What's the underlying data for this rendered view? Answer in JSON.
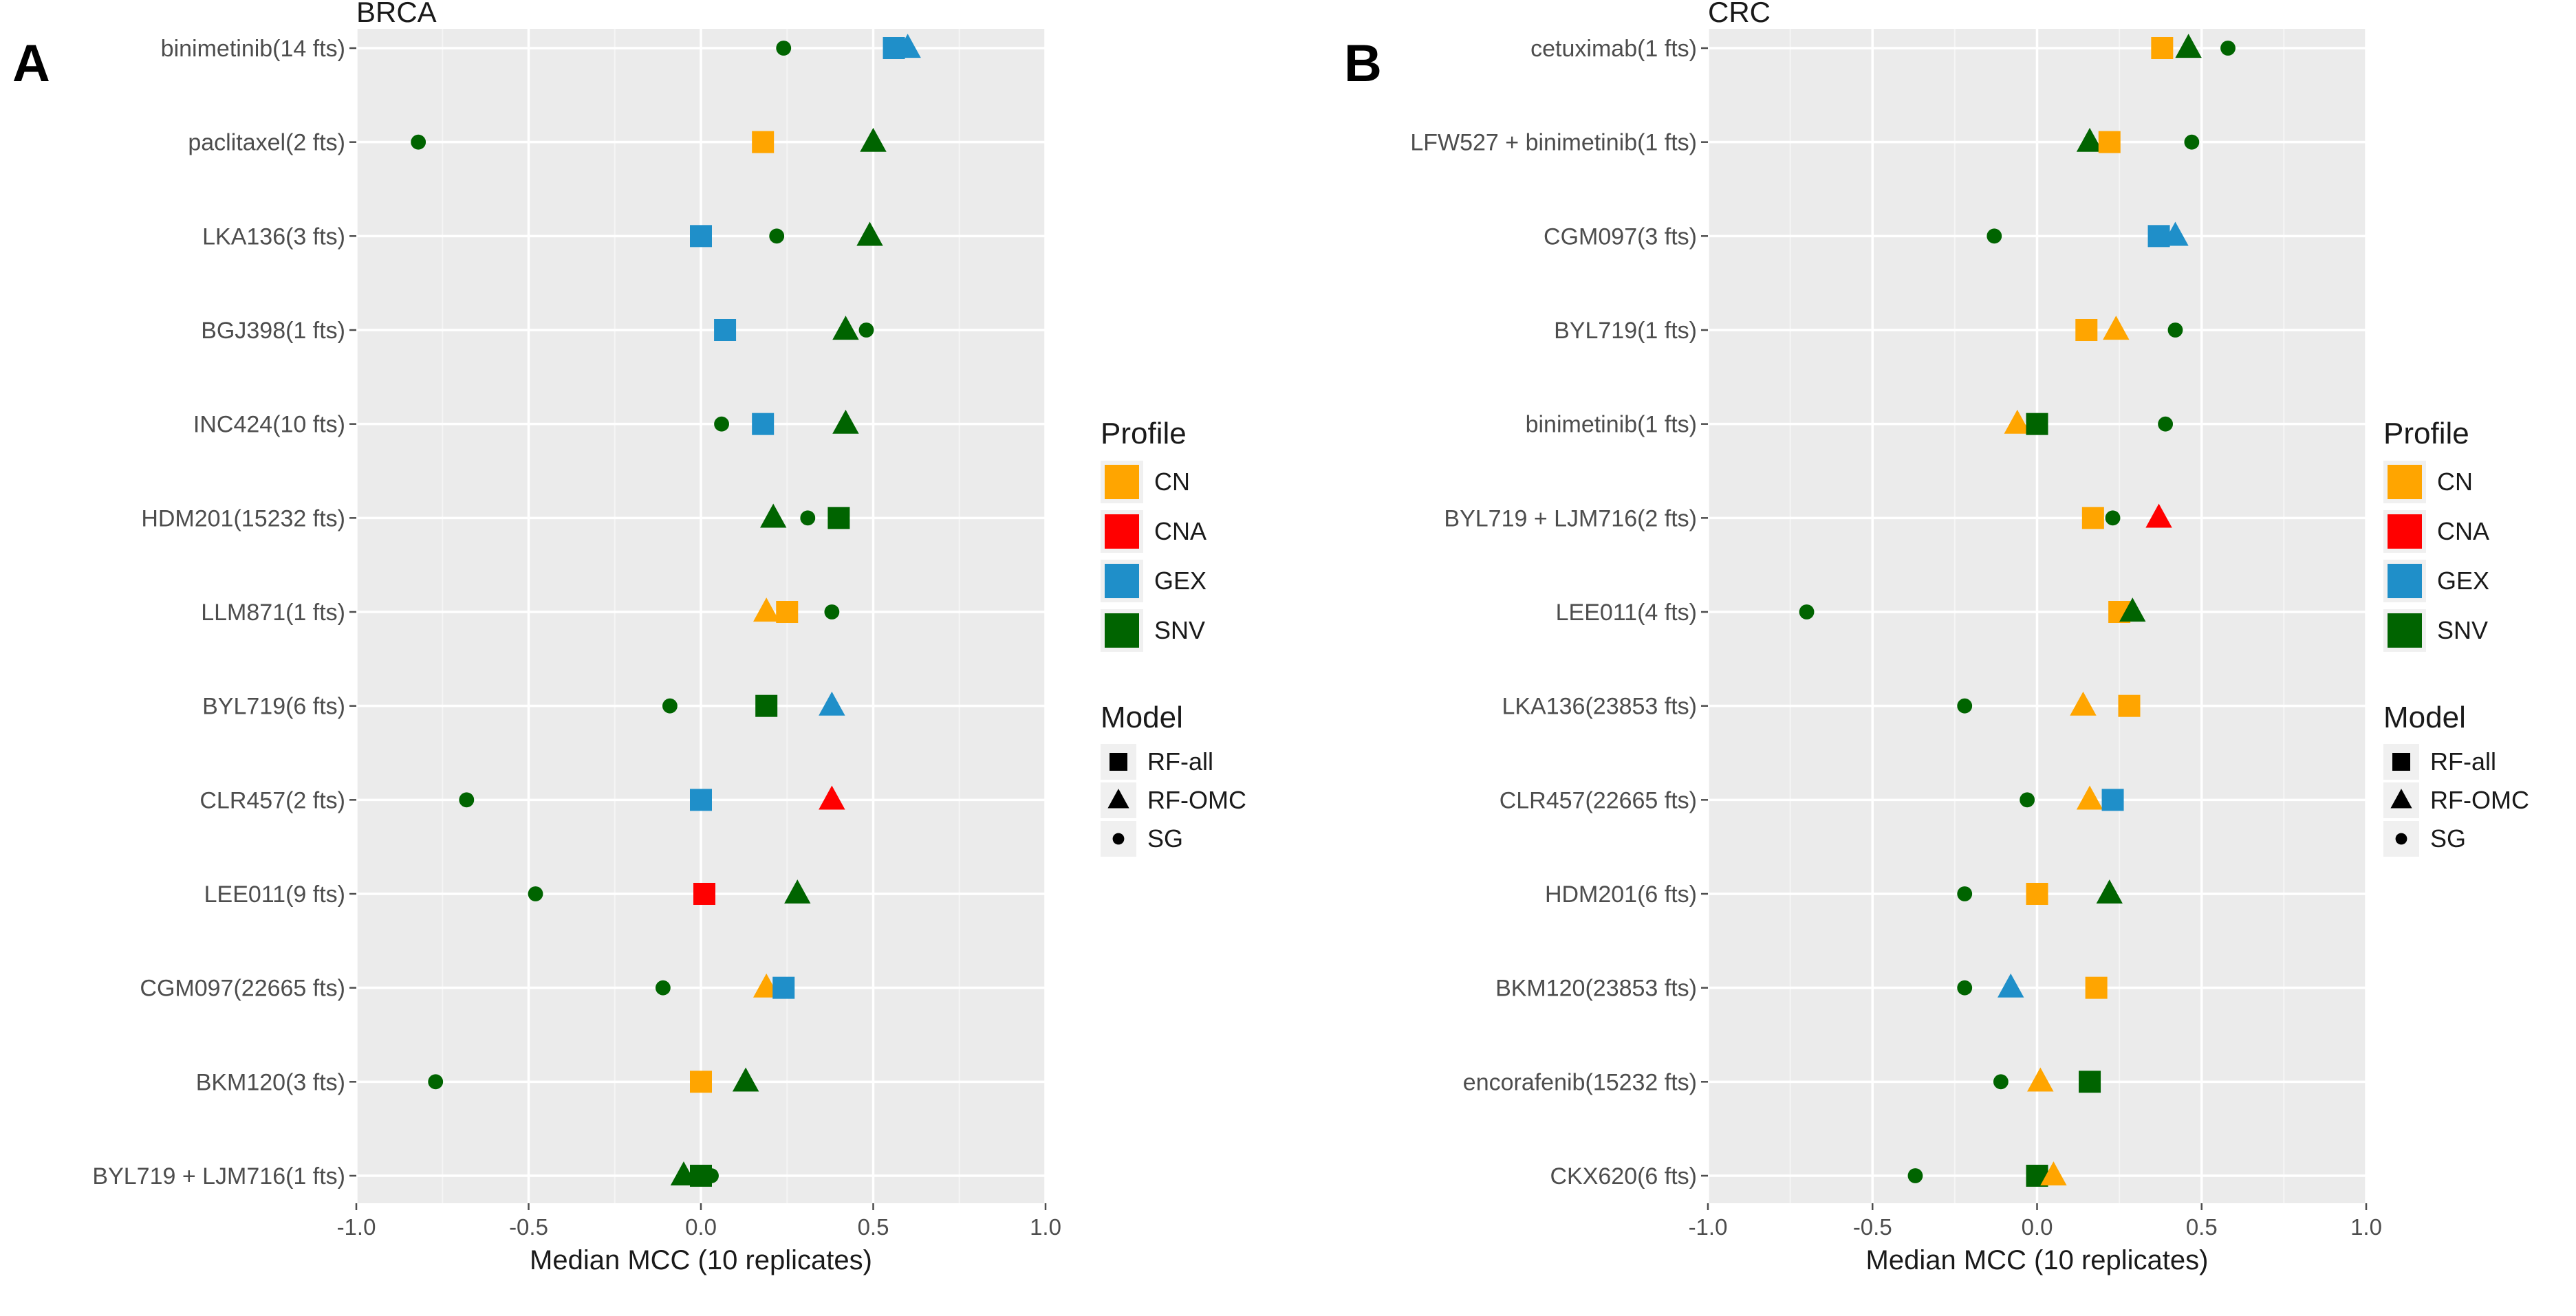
{
  "chart_data": [
    {
      "type": "scatter",
      "panel": "A",
      "title": "BRCA",
      "xlabel": "Median MCC (10 replicates)",
      "ylabel": "",
      "xlim": [
        -1.0,
        1.0
      ],
      "xticks": [
        -1.0,
        -0.5,
        0.0,
        0.5,
        1.0
      ],
      "xtick_labels": [
        "-1.0",
        "-0.5",
        "0.0",
        "0.5",
        "1.0"
      ],
      "grid": true,
      "categories": [
        "binimetinib(14 fts)",
        "paclitaxel(2 fts)",
        "LKA136(3 fts)",
        "BGJ398(1 fts)",
        "INC424(10 fts)",
        "HDM201(15232 fts)",
        "LLM871(1 fts)",
        "BYL719(6 fts)",
        "CLR457(2 fts)",
        "LEE011(9 fts)",
        "CGM097(22665 fts)",
        "BKM120(3 fts)",
        "BYL719 + LJM716(1 fts)"
      ],
      "points": [
        {
          "category": 0,
          "model": "SG",
          "profile": "SNV",
          "value": 0.24
        },
        {
          "category": 0,
          "model": "RF-all",
          "profile": "GEX",
          "value": 0.56
        },
        {
          "category": 0,
          "model": "RF-OMC",
          "profile": "GEX",
          "value": 0.6
        },
        {
          "category": 1,
          "model": "SG",
          "profile": "SNV",
          "value": -0.82
        },
        {
          "category": 1,
          "model": "RF-all",
          "profile": "CN",
          "value": 0.18
        },
        {
          "category": 1,
          "model": "RF-OMC",
          "profile": "SNV",
          "value": 0.5
        },
        {
          "category": 2,
          "model": "RF-all",
          "profile": "GEX",
          "value": 0.0
        },
        {
          "category": 2,
          "model": "SG",
          "profile": "SNV",
          "value": 0.22
        },
        {
          "category": 2,
          "model": "RF-OMC",
          "profile": "SNV",
          "value": 0.49
        },
        {
          "category": 3,
          "model": "RF-all",
          "profile": "GEX",
          "value": 0.07
        },
        {
          "category": 3,
          "model": "RF-OMC",
          "profile": "SNV",
          "value": 0.42
        },
        {
          "category": 3,
          "model": "SG",
          "profile": "SNV",
          "value": 0.48
        },
        {
          "category": 4,
          "model": "SG",
          "profile": "SNV",
          "value": 0.06
        },
        {
          "category": 4,
          "model": "RF-all",
          "profile": "GEX",
          "value": 0.18
        },
        {
          "category": 4,
          "model": "RF-OMC",
          "profile": "SNV",
          "value": 0.42
        },
        {
          "category": 5,
          "model": "RF-OMC",
          "profile": "SNV",
          "value": 0.21
        },
        {
          "category": 5,
          "model": "SG",
          "profile": "SNV",
          "value": 0.31
        },
        {
          "category": 5,
          "model": "RF-all",
          "profile": "SNV",
          "value": 0.4
        },
        {
          "category": 6,
          "model": "RF-OMC",
          "profile": "CN",
          "value": 0.19
        },
        {
          "category": 6,
          "model": "RF-all",
          "profile": "CN",
          "value": 0.25
        },
        {
          "category": 6,
          "model": "SG",
          "profile": "SNV",
          "value": 0.38
        },
        {
          "category": 7,
          "model": "SG",
          "profile": "SNV",
          "value": -0.09
        },
        {
          "category": 7,
          "model": "RF-all",
          "profile": "SNV",
          "value": 0.19
        },
        {
          "category": 7,
          "model": "RF-OMC",
          "profile": "GEX",
          "value": 0.38
        },
        {
          "category": 8,
          "model": "SG",
          "profile": "SNV",
          "value": -0.68
        },
        {
          "category": 8,
          "model": "RF-all",
          "profile": "GEX",
          "value": 0.0
        },
        {
          "category": 8,
          "model": "RF-OMC",
          "profile": "CNA",
          "value": 0.38
        },
        {
          "category": 9,
          "model": "SG",
          "profile": "SNV",
          "value": -0.48
        },
        {
          "category": 9,
          "model": "RF-all",
          "profile": "CNA",
          "value": 0.01
        },
        {
          "category": 9,
          "model": "RF-OMC",
          "profile": "SNV",
          "value": 0.28
        },
        {
          "category": 10,
          "model": "SG",
          "profile": "SNV",
          "value": -0.11
        },
        {
          "category": 10,
          "model": "RF-OMC",
          "profile": "CN",
          "value": 0.19
        },
        {
          "category": 10,
          "model": "RF-all",
          "profile": "GEX",
          "value": 0.24
        },
        {
          "category": 11,
          "model": "SG",
          "profile": "SNV",
          "value": -0.77
        },
        {
          "category": 11,
          "model": "RF-all",
          "profile": "CN",
          "value": 0.0
        },
        {
          "category": 11,
          "model": "RF-OMC",
          "profile": "SNV",
          "value": 0.13
        },
        {
          "category": 12,
          "model": "RF-OMC",
          "profile": "SNV",
          "value": -0.05
        },
        {
          "category": 12,
          "model": "RF-all",
          "profile": "SNV",
          "value": 0.0
        },
        {
          "category": 12,
          "model": "SG",
          "profile": "SNV",
          "value": 0.02
        },
        {
          "category": 12,
          "model": "SG",
          "profile": "SNV",
          "value": 0.03
        }
      ]
    },
    {
      "type": "scatter",
      "panel": "B",
      "title": "CRC",
      "xlabel": "Median MCC (10 replicates)",
      "ylabel": "",
      "xlim": [
        -1.0,
        1.0
      ],
      "xticks": [
        -1.0,
        -0.5,
        0.0,
        0.5,
        1.0
      ],
      "xtick_labels": [
        "-1.0",
        "-0.5",
        "0.0",
        "0.5",
        "1.0"
      ],
      "grid": true,
      "categories": [
        "cetuximab(1 fts)",
        "LFW527 + binimetinib(1 fts)",
        "CGM097(3 fts)",
        "BYL719(1 fts)",
        "binimetinib(1 fts)",
        "BYL719 + LJM716(2 fts)",
        "LEE011(4 fts)",
        "LKA136(23853 fts)",
        "CLR457(22665 fts)",
        "HDM201(6 fts)",
        "BKM120(23853 fts)",
        "encorafenib(15232 fts)",
        "CKX620(6 fts)"
      ],
      "points": [
        {
          "category": 0,
          "model": "RF-all",
          "profile": "CN",
          "value": 0.38
        },
        {
          "category": 0,
          "model": "RF-OMC",
          "profile": "SNV",
          "value": 0.46
        },
        {
          "category": 0,
          "model": "SG",
          "profile": "SNV",
          "value": 0.58
        },
        {
          "category": 1,
          "model": "RF-OMC",
          "profile": "SNV",
          "value": 0.16
        },
        {
          "category": 1,
          "model": "RF-all",
          "profile": "CN",
          "value": 0.22
        },
        {
          "category": 1,
          "model": "SG",
          "profile": "SNV",
          "value": 0.47
        },
        {
          "category": 2,
          "model": "SG",
          "profile": "SNV",
          "value": -0.13
        },
        {
          "category": 2,
          "model": "RF-all",
          "profile": "GEX",
          "value": 0.37
        },
        {
          "category": 2,
          "model": "RF-OMC",
          "profile": "GEX",
          "value": 0.42
        },
        {
          "category": 3,
          "model": "RF-all",
          "profile": "CN",
          "value": 0.15
        },
        {
          "category": 3,
          "model": "RF-OMC",
          "profile": "CN",
          "value": 0.24
        },
        {
          "category": 3,
          "model": "SG",
          "profile": "SNV",
          "value": 0.42
        },
        {
          "category": 4,
          "model": "RF-OMC",
          "profile": "CN",
          "value": -0.06
        },
        {
          "category": 4,
          "model": "RF-all",
          "profile": "SNV",
          "value": 0.0
        },
        {
          "category": 4,
          "model": "SG",
          "profile": "SNV",
          "value": 0.39
        },
        {
          "category": 5,
          "model": "RF-all",
          "profile": "CN",
          "value": 0.17
        },
        {
          "category": 5,
          "model": "SG",
          "profile": "SNV",
          "value": 0.23
        },
        {
          "category": 5,
          "model": "RF-OMC",
          "profile": "CNA",
          "value": 0.37
        },
        {
          "category": 6,
          "model": "SG",
          "profile": "SNV",
          "value": -0.7
        },
        {
          "category": 6,
          "model": "RF-all",
          "profile": "CN",
          "value": 0.25
        },
        {
          "category": 6,
          "model": "RF-OMC",
          "profile": "SNV",
          "value": 0.29
        },
        {
          "category": 7,
          "model": "SG",
          "profile": "SNV",
          "value": -0.22
        },
        {
          "category": 7,
          "model": "RF-OMC",
          "profile": "CN",
          "value": 0.14
        },
        {
          "category": 7,
          "model": "RF-all",
          "profile": "CN",
          "value": 0.28
        },
        {
          "category": 8,
          "model": "SG",
          "profile": "SNV",
          "value": -0.03
        },
        {
          "category": 8,
          "model": "RF-OMC",
          "profile": "CN",
          "value": 0.16
        },
        {
          "category": 8,
          "model": "RF-all",
          "profile": "GEX",
          "value": 0.23
        },
        {
          "category": 9,
          "model": "SG",
          "profile": "SNV",
          "value": -0.22
        },
        {
          "category": 9,
          "model": "RF-all",
          "profile": "CN",
          "value": 0.0
        },
        {
          "category": 9,
          "model": "RF-OMC",
          "profile": "SNV",
          "value": 0.22
        },
        {
          "category": 10,
          "model": "SG",
          "profile": "SNV",
          "value": -0.22
        },
        {
          "category": 10,
          "model": "RF-OMC",
          "profile": "GEX",
          "value": -0.08
        },
        {
          "category": 10,
          "model": "RF-all",
          "profile": "CN",
          "value": 0.18
        },
        {
          "category": 11,
          "model": "SG",
          "profile": "SNV",
          "value": -0.11
        },
        {
          "category": 11,
          "model": "RF-OMC",
          "profile": "CN",
          "value": 0.01
        },
        {
          "category": 11,
          "model": "RF-all",
          "profile": "SNV",
          "value": 0.16
        },
        {
          "category": 12,
          "model": "SG",
          "profile": "SNV",
          "value": -0.37
        },
        {
          "category": 12,
          "model": "RF-all",
          "profile": "SNV",
          "value": 0.0
        },
        {
          "category": 12,
          "model": "RF-OMC",
          "profile": "CN",
          "value": 0.05
        }
      ]
    }
  ],
  "legend": {
    "profile_title": "Profile",
    "profiles": [
      {
        "name": "CN",
        "color": "#FFA500"
      },
      {
        "name": "CNA",
        "color": "#FF0000"
      },
      {
        "name": "GEX",
        "color": "#1F8FC9"
      },
      {
        "name": "SNV",
        "color": "#006400"
      }
    ],
    "model_title": "Model",
    "models": [
      {
        "name": "RF-all",
        "shape": "square"
      },
      {
        "name": "RF-OMC",
        "shape": "triangle"
      },
      {
        "name": "SG",
        "shape": "circle"
      }
    ]
  },
  "panel_letters": [
    "A",
    "B"
  ]
}
